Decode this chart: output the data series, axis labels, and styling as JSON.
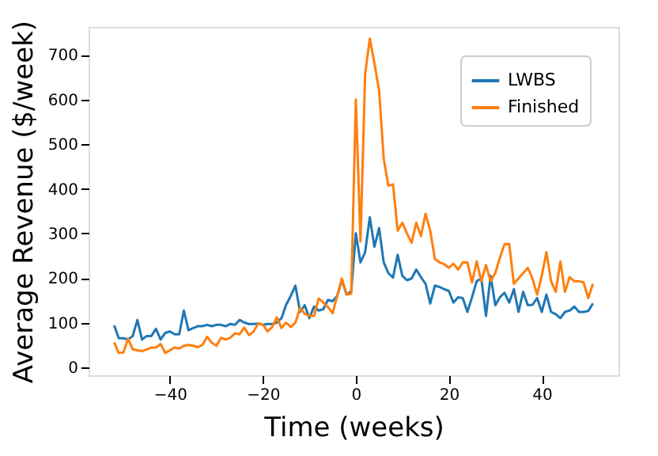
{
  "chart_data": {
    "type": "line",
    "xlabel": "Time (weeks)",
    "ylabel": "Average Revenue ($/week)",
    "x": [
      -52,
      -51,
      -50,
      -49,
      -48,
      -47,
      -46,
      -45,
      -44,
      -43,
      -42,
      -41,
      -40,
      -39,
      -38,
      -37,
      -36,
      -35,
      -34,
      -33,
      -32,
      -31,
      -30,
      -29,
      -28,
      -27,
      -26,
      -25,
      -24,
      -23,
      -22,
      -21,
      -20,
      -19,
      -18,
      -17,
      -16,
      -15,
      -14,
      -13,
      -12,
      -11,
      -10,
      -9,
      -8,
      -7,
      -6,
      -5,
      -4,
      -3,
      -2,
      -1,
      0,
      1,
      2,
      3,
      4,
      5,
      6,
      7,
      8,
      9,
      10,
      11,
      12,
      13,
      14,
      15,
      16,
      17,
      18,
      19,
      20,
      21,
      22,
      23,
      24,
      25,
      26,
      27,
      28,
      29,
      30,
      31,
      32,
      33,
      34,
      35,
      36,
      37,
      38,
      39,
      40,
      41,
      42,
      43,
      44,
      45,
      46,
      47,
      48,
      49,
      50,
      51
    ],
    "series": [
      {
        "name": "LWBS",
        "color": "#1f77b4",
        "values": [
          94,
          65,
          65,
          62,
          70,
          106,
          62,
          70,
          70,
          86,
          62,
          77,
          80,
          74,
          74,
          127,
          83,
          88,
          92,
          92,
          95,
          92,
          95,
          95,
          92,
          97,
          95,
          106,
          100,
          97,
          97,
          98,
          95,
          97,
          97,
          100,
          110,
          140,
          160,
          183,
          124,
          139,
          110,
          136,
          127,
          130,
          151,
          148,
          160,
          196,
          163,
          170,
          300,
          235,
          258,
          336,
          270,
          312,
          235,
          211,
          201,
          252,
          205,
          195,
          199,
          219,
          202,
          187,
          143,
          183,
          180,
          175,
          171,
          145,
          157,
          155,
          124,
          157,
          193,
          199,
          115,
          205,
          139,
          157,
          167,
          145,
          175,
          124,
          169,
          139,
          140,
          155,
          124,
          163,
          124,
          119,
          110,
          124,
          127,
          136,
          124,
          124,
          126,
          143
        ]
      },
      {
        "name": "Finished",
        "color": "#ff7f0e",
        "values": [
          56,
          32,
          33,
          64,
          40,
          38,
          36,
          40,
          44,
          44,
          52,
          32,
          38,
          44,
          42,
          48,
          50,
          48,
          45,
          50,
          68,
          55,
          48,
          66,
          62,
          66,
          76,
          74,
          89,
          72,
          80,
          98,
          96,
          80,
          90,
          112,
          88,
          100,
          90,
          100,
          133,
          120,
          115,
          115,
          154,
          145,
          135,
          121,
          160,
          199,
          163,
          165,
          600,
          282,
          657,
          737,
          681,
          621,
          467,
          407,
          410,
          306,
          324,
          300,
          279,
          324,
          294,
          344,
          306,
          243,
          235,
          231,
          223,
          232,
          219,
          235,
          235,
          190,
          237,
          193,
          229,
          193,
          211,
          246,
          276,
          276,
          187,
          199,
          211,
          223,
          199,
          163,
          205,
          258,
          193,
          169,
          237,
          169,
          202,
          193,
          193,
          190,
          155,
          187
        ]
      }
    ],
    "xlim": [
      -57.5,
      56.5
    ],
    "ylim": [
      -18,
      763
    ],
    "xticks": [
      -40,
      -20,
      0,
      20,
      40
    ],
    "yticks": [
      0,
      100,
      200,
      300,
      400,
      500,
      600,
      700
    ],
    "legend": "top right",
    "grid": false
  }
}
